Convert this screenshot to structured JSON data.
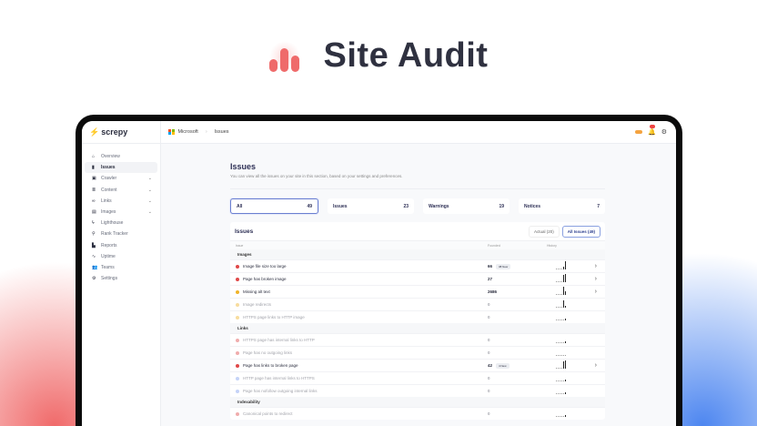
{
  "hero": {
    "title": "Site Audit",
    "icon": "bar-chart-icon"
  },
  "colors": {
    "accent": "#ef6b6b",
    "critical": "#e04848",
    "warning": "#f0b429",
    "notice": "#7fa0f0",
    "selected": "#6b7fd0"
  },
  "sidebar": {
    "logo": "screpy",
    "items": [
      {
        "label": "Overview",
        "icon": "home-icon",
        "expandable": false,
        "active": false
      },
      {
        "label": "Issues",
        "icon": "chart-icon",
        "expandable": false,
        "active": true
      },
      {
        "label": "Crawler",
        "icon": "window-icon",
        "expandable": true,
        "active": false
      },
      {
        "label": "Content",
        "icon": "content-icon",
        "expandable": true,
        "active": false
      },
      {
        "label": "Links",
        "icon": "link-icon",
        "expandable": true,
        "active": false
      },
      {
        "label": "Images",
        "icon": "image-icon",
        "expandable": true,
        "active": false
      },
      {
        "label": "Lighthouse",
        "icon": "lightning-icon",
        "expandable": false,
        "active": false
      },
      {
        "label": "Rank Tracker",
        "icon": "search-icon",
        "expandable": false,
        "active": false
      },
      {
        "label": "Reports",
        "icon": "document-icon",
        "expandable": false,
        "active": false
      },
      {
        "label": "Uptime",
        "icon": "pulse-icon",
        "expandable": false,
        "active": false
      },
      {
        "label": "Teams",
        "icon": "users-icon",
        "expandable": false,
        "active": false
      },
      {
        "label": "Settings",
        "icon": "gear-icon",
        "expandable": false,
        "active": false
      }
    ]
  },
  "topbar": {
    "breadcrumb": [
      "Microsoft",
      "Issues"
    ]
  },
  "page": {
    "title": "Issues",
    "subtitle": "You can view all the issues on your site in this section, based on your settings and preferences."
  },
  "cards": [
    {
      "label": "All",
      "count": "49",
      "selected": true
    },
    {
      "label": "Issues",
      "count": "23"
    },
    {
      "label": "Warnings",
      "count": "19"
    },
    {
      "label": "Notices",
      "count": "7"
    }
  ],
  "table": {
    "title": "Issues",
    "toggles": [
      {
        "label": "Actual (20)",
        "active": false
      },
      {
        "label": "All Issues (49)",
        "active": true
      }
    ],
    "columns": [
      "Issue",
      "Founded",
      "History"
    ],
    "groups": [
      {
        "name": "Images",
        "rows": [
          {
            "issue": "Image file size too large",
            "count": "66",
            "new": "38 New",
            "severity": "critical",
            "dim": false,
            "history": [
              1,
              1,
              1,
              1,
              3,
              9
            ]
          },
          {
            "issue": "Page has broken image",
            "count": "27",
            "new": "",
            "severity": "critical",
            "dim": false,
            "history": [
              1,
              1,
              1,
              1,
              8,
              9
            ]
          },
          {
            "issue": "Missing alt text",
            "count": "2686",
            "new": "",
            "severity": "warning",
            "dim": false,
            "history": [
              1,
              1,
              1,
              1,
              9,
              4
            ]
          },
          {
            "issue": "Image redirects",
            "count": "0",
            "new": "",
            "severity": "warning",
            "dim": true,
            "history": [
              1,
              1,
              1,
              1,
              8,
              2
            ]
          },
          {
            "issue": "HTTPS page links to HTTP image",
            "count": "0",
            "new": "",
            "severity": "warning",
            "dim": true,
            "history": [
              1,
              1,
              1,
              1,
              1,
              2
            ]
          }
        ]
      },
      {
        "name": "Links",
        "rows": [
          {
            "issue": "HTTPS page has internal links to HTTP",
            "count": "0",
            "new": "",
            "severity": "critical",
            "dim": true,
            "history": [
              1,
              1,
              1,
              1,
              1,
              2
            ]
          },
          {
            "issue": "Page has no outgoing links",
            "count": "0",
            "new": "",
            "severity": "critical",
            "dim": true,
            "history": [
              1,
              1,
              1,
              1,
              1,
              1
            ]
          },
          {
            "issue": "Page has links to broken page",
            "count": "42",
            "new": "4 New",
            "severity": "critical",
            "dim": false,
            "history": [
              1,
              1,
              1,
              1,
              8,
              9
            ]
          },
          {
            "issue": "HTTP page has internal links to HTTPS",
            "count": "0",
            "new": "",
            "severity": "notice",
            "dim": true,
            "history": [
              1,
              1,
              1,
              1,
              1,
              2
            ]
          },
          {
            "issue": "Page has nofollow outgoing internal links",
            "count": "0",
            "new": "",
            "severity": "notice",
            "dim": true,
            "history": [
              1,
              1,
              1,
              1,
              1,
              2
            ]
          }
        ]
      },
      {
        "name": "Indexability",
        "rows": [
          {
            "issue": "Canonical points to redirect",
            "count": "0",
            "new": "",
            "severity": "critical",
            "dim": true,
            "history": [
              1,
              1,
              1,
              1,
              1,
              2
            ]
          }
        ]
      }
    ]
  }
}
